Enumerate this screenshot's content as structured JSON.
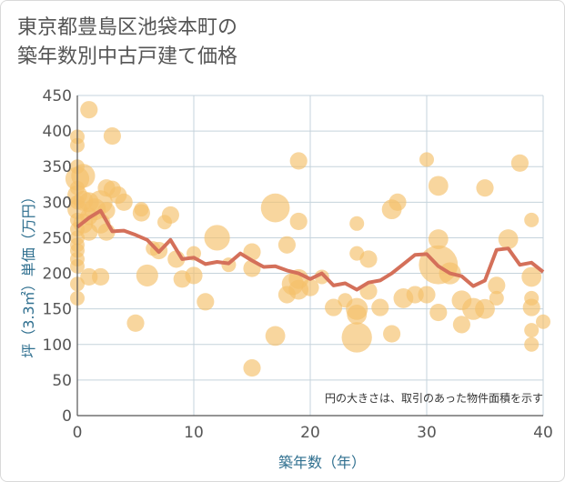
{
  "title": "東京都豊島区池袋本町の\n築年数別中古戸建て価格",
  "chart_data": {
    "type": "scatter",
    "title": "東京都豊島区池袋本町の築年数別中古戸建て価格",
    "xlabel": "築年数（年）",
    "ylabel": "坪（3.3㎡）単価（万円）",
    "xlim": [
      0,
      40
    ],
    "ylim": [
      0,
      450
    ],
    "x_ticks": [
      0,
      10,
      20,
      30,
      40
    ],
    "y_ticks": [
      0,
      50,
      100,
      150,
      200,
      250,
      300,
      350,
      400,
      450
    ],
    "grid": true,
    "annotation": "円の大きさは、取引のあった物件面積を示す",
    "colors": {
      "bubble": "#f5c06a",
      "line": "#d4705a",
      "grid": "#c5d3dc"
    },
    "bubbles": [
      {
        "x": 0,
        "y": 392,
        "s": 1
      },
      {
        "x": 0,
        "y": 380,
        "s": 1
      },
      {
        "x": 0,
        "y": 350,
        "s": 1
      },
      {
        "x": 0,
        "y": 333,
        "s": 3
      },
      {
        "x": 0,
        "y": 320,
        "s": 1
      },
      {
        "x": 0,
        "y": 310,
        "s": 2
      },
      {
        "x": 0,
        "y": 300,
        "s": 1
      },
      {
        "x": 0,
        "y": 290,
        "s": 2
      },
      {
        "x": 0,
        "y": 275,
        "s": 1
      },
      {
        "x": 0,
        "y": 262,
        "s": 1
      },
      {
        "x": 0,
        "y": 250,
        "s": 1
      },
      {
        "x": 0,
        "y": 240,
        "s": 1
      },
      {
        "x": 0,
        "y": 232,
        "s": 1
      },
      {
        "x": 0,
        "y": 220,
        "s": 1
      },
      {
        "x": 0,
        "y": 210,
        "s": 1
      },
      {
        "x": 0,
        "y": 185,
        "s": 1
      },
      {
        "x": 0,
        "y": 165,
        "s": 1
      },
      {
        "x": 0.5,
        "y": 337,
        "s": 3
      },
      {
        "x": 0.5,
        "y": 302,
        "s": 2
      },
      {
        "x": 0.5,
        "y": 270,
        "s": 2
      },
      {
        "x": 1,
        "y": 430,
        "s": 1.5
      },
      {
        "x": 1,
        "y": 300,
        "s": 2
      },
      {
        "x": 1,
        "y": 280,
        "s": 1.5
      },
      {
        "x": 1,
        "y": 258,
        "s": 1.5
      },
      {
        "x": 1,
        "y": 195,
        "s": 1.5
      },
      {
        "x": 1.5,
        "y": 290,
        "s": 2.5
      },
      {
        "x": 2,
        "y": 300,
        "s": 3
      },
      {
        "x": 2,
        "y": 270,
        "s": 2
      },
      {
        "x": 2,
        "y": 195,
        "s": 1.5
      },
      {
        "x": 2.5,
        "y": 320,
        "s": 1.5
      },
      {
        "x": 2.5,
        "y": 288,
        "s": 1.5
      },
      {
        "x": 2.5,
        "y": 258,
        "s": 1.5
      },
      {
        "x": 3,
        "y": 393,
        "s": 1.5
      },
      {
        "x": 3,
        "y": 318,
        "s": 1.5
      },
      {
        "x": 3.5,
        "y": 310,
        "s": 1.5
      },
      {
        "x": 4,
        "y": 300,
        "s": 1.5
      },
      {
        "x": 5,
        "y": 130,
        "s": 1.5
      },
      {
        "x": 5.5,
        "y": 285,
        "s": 1.5
      },
      {
        "x": 5.5,
        "y": 290,
        "s": 1
      },
      {
        "x": 6,
        "y": 197,
        "s": 2.5
      },
      {
        "x": 6.5,
        "y": 235,
        "s": 1
      },
      {
        "x": 7,
        "y": 232,
        "s": 1.5
      },
      {
        "x": 7.5,
        "y": 272,
        "s": 1
      },
      {
        "x": 8,
        "y": 282,
        "s": 1.5
      },
      {
        "x": 8.5,
        "y": 220,
        "s": 1.5
      },
      {
        "x": 9,
        "y": 192,
        "s": 1.5
      },
      {
        "x": 10,
        "y": 228,
        "s": 1
      },
      {
        "x": 10,
        "y": 197,
        "s": 1.5
      },
      {
        "x": 11,
        "y": 160,
        "s": 1.5
      },
      {
        "x": 12,
        "y": 250,
        "s": 3.5
      },
      {
        "x": 13,
        "y": 212,
        "s": 1
      },
      {
        "x": 15,
        "y": 230,
        "s": 1.5
      },
      {
        "x": 15,
        "y": 207,
        "s": 1.5
      },
      {
        "x": 15,
        "y": 67,
        "s": 1.5
      },
      {
        "x": 17,
        "y": 292,
        "s": 4.5
      },
      {
        "x": 17,
        "y": 112,
        "s": 2
      },
      {
        "x": 18,
        "y": 240,
        "s": 1.5
      },
      {
        "x": 18,
        "y": 170,
        "s": 1.5
      },
      {
        "x": 18.5,
        "y": 185,
        "s": 2.5
      },
      {
        "x": 19,
        "y": 358,
        "s": 1.5
      },
      {
        "x": 19,
        "y": 273,
        "s": 1.5
      },
      {
        "x": 19,
        "y": 192,
        "s": 2
      },
      {
        "x": 19,
        "y": 177,
        "s": 2
      },
      {
        "x": 20,
        "y": 180,
        "s": 1.5
      },
      {
        "x": 21,
        "y": 195,
        "s": 1
      },
      {
        "x": 22,
        "y": 152,
        "s": 1.5
      },
      {
        "x": 23,
        "y": 162,
        "s": 1
      },
      {
        "x": 24,
        "y": 270,
        "s": 1
      },
      {
        "x": 24,
        "y": 228,
        "s": 1
      },
      {
        "x": 24,
        "y": 150,
        "s": 2.5
      },
      {
        "x": 24,
        "y": 142,
        "s": 2
      },
      {
        "x": 24,
        "y": 110,
        "s": 5
      },
      {
        "x": 25,
        "y": 220,
        "s": 1.5
      },
      {
        "x": 25,
        "y": 175,
        "s": 1.5
      },
      {
        "x": 26,
        "y": 152,
        "s": 1.5
      },
      {
        "x": 27,
        "y": 290,
        "s": 2
      },
      {
        "x": 27,
        "y": 115,
        "s": 1.5
      },
      {
        "x": 27.5,
        "y": 300,
        "s": 1.5
      },
      {
        "x": 28,
        "y": 165,
        "s": 2
      },
      {
        "x": 29,
        "y": 170,
        "s": 1.5
      },
      {
        "x": 30,
        "y": 360,
        "s": 1
      },
      {
        "x": 30,
        "y": 170,
        "s": 1.5
      },
      {
        "x": 31,
        "y": 212,
        "s": 8.5
      },
      {
        "x": 31,
        "y": 323,
        "s": 2
      },
      {
        "x": 31,
        "y": 248,
        "s": 2
      },
      {
        "x": 31,
        "y": 145,
        "s": 1.5
      },
      {
        "x": 32,
        "y": 200,
        "s": 2.5
      },
      {
        "x": 33,
        "y": 162,
        "s": 2
      },
      {
        "x": 33,
        "y": 128,
        "s": 1.5
      },
      {
        "x": 34,
        "y": 150,
        "s": 2.5
      },
      {
        "x": 35,
        "y": 320,
        "s": 1.5
      },
      {
        "x": 35,
        "y": 150,
        "s": 2
      },
      {
        "x": 36,
        "y": 183,
        "s": 1.5
      },
      {
        "x": 36,
        "y": 165,
        "s": 1
      },
      {
        "x": 37,
        "y": 248,
        "s": 2
      },
      {
        "x": 38,
        "y": 355,
        "s": 1.5
      },
      {
        "x": 39,
        "y": 275,
        "s": 1
      },
      {
        "x": 39,
        "y": 195,
        "s": 2
      },
      {
        "x": 39,
        "y": 165,
        "s": 1
      },
      {
        "x": 39,
        "y": 152,
        "s": 1.5
      },
      {
        "x": 39,
        "y": 120,
        "s": 1
      },
      {
        "x": 39,
        "y": 100,
        "s": 1
      },
      {
        "x": 40,
        "y": 132,
        "s": 1
      }
    ],
    "series": [
      {
        "type": "line",
        "x": [
          0,
          1,
          2,
          3,
          4,
          5,
          6,
          7,
          8,
          9,
          10,
          11,
          12,
          13,
          14,
          15,
          16,
          17,
          18,
          19,
          20,
          21,
          22,
          23,
          24,
          25,
          26,
          27,
          28,
          29,
          30,
          31,
          32,
          33,
          34,
          35,
          36,
          37,
          38,
          39,
          40
        ],
        "values": [
          265,
          278,
          288,
          259,
          260,
          254,
          247,
          230,
          247,
          220,
          222,
          213,
          216,
          214,
          228,
          218,
          209,
          210,
          204,
          200,
          192,
          200,
          183,
          186,
          177,
          187,
          190,
          200,
          213,
          226,
          227,
          210,
          200,
          196,
          182,
          190,
          233,
          235,
          212,
          215,
          202
        ]
      }
    ]
  }
}
